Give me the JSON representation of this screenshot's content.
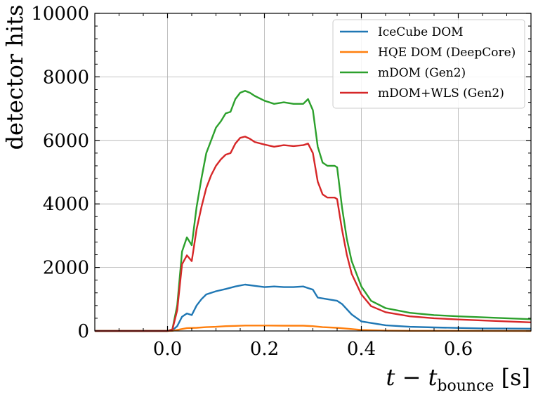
{
  "chart_data": {
    "type": "line",
    "xlabel": "t − t",
    "xlabel_sub": "bounce",
    "xlabel_unit": " [s]",
    "ylabel": "detector hits",
    "xlim": [
      -0.15,
      0.75
    ],
    "ylim": [
      0,
      10000
    ],
    "xticks": [
      0.0,
      0.2,
      0.4,
      0.6
    ],
    "xtick_labels": [
      "0.0",
      "0.2",
      "0.4",
      "0.6"
    ],
    "yticks": [
      0,
      2000,
      4000,
      6000,
      8000,
      10000
    ],
    "ytick_labels": [
      "0",
      "2000",
      "4000",
      "6000",
      "8000",
      "10000"
    ],
    "grid": true,
    "legend_position": "top-right",
    "series": [
      {
        "name": "IceCube DOM",
        "color": "#1f77b4",
        "x": [
          -0.15,
          0.0,
          0.01,
          0.02,
          0.03,
          0.04,
          0.05,
          0.06,
          0.07,
          0.08,
          0.1,
          0.12,
          0.14,
          0.16,
          0.18,
          0.2,
          0.22,
          0.24,
          0.26,
          0.28,
          0.29,
          0.3,
          0.31,
          0.33,
          0.35,
          0.36,
          0.38,
          0.4,
          0.45,
          0.5,
          0.55,
          0.6,
          0.65,
          0.7,
          0.75
        ],
        "y": [
          0,
          0,
          20,
          150,
          450,
          550,
          500,
          800,
          1000,
          1150,
          1250,
          1320,
          1400,
          1460,
          1420,
          1380,
          1400,
          1380,
          1380,
          1400,
          1350,
          1300,
          1050,
          1000,
          950,
          850,
          520,
          300,
          180,
          130,
          110,
          95,
          80,
          75,
          70
        ]
      },
      {
        "name": "HQE DOM (DeepCore)",
        "color": "#ff7f0e",
        "x": [
          -0.15,
          0.0,
          0.01,
          0.02,
          0.04,
          0.06,
          0.08,
          0.1,
          0.12,
          0.14,
          0.16,
          0.2,
          0.24,
          0.28,
          0.3,
          0.32,
          0.35,
          0.38,
          0.4,
          0.45,
          0.5,
          0.75
        ],
        "y": [
          0,
          0,
          5,
          30,
          90,
          100,
          120,
          130,
          150,
          160,
          170,
          170,
          165,
          165,
          150,
          120,
          100,
          60,
          30,
          10,
          5,
          0
        ]
      },
      {
        "name": "mDOM (Gen2)",
        "color": "#2ca02c",
        "x": [
          -0.15,
          0.0,
          0.01,
          0.02,
          0.03,
          0.04,
          0.05,
          0.06,
          0.07,
          0.08,
          0.09,
          0.1,
          0.11,
          0.12,
          0.13,
          0.14,
          0.15,
          0.16,
          0.17,
          0.18,
          0.2,
          0.22,
          0.24,
          0.26,
          0.28,
          0.29,
          0.3,
          0.31,
          0.32,
          0.33,
          0.345,
          0.35,
          0.36,
          0.37,
          0.38,
          0.4,
          0.42,
          0.45,
          0.5,
          0.55,
          0.6,
          0.65,
          0.7,
          0.75
        ],
        "y": [
          0,
          0,
          50,
          800,
          2500,
          2950,
          2700,
          3900,
          4800,
          5600,
          6000,
          6400,
          6600,
          6850,
          6900,
          7300,
          7500,
          7560,
          7500,
          7400,
          7250,
          7150,
          7200,
          7150,
          7150,
          7300,
          6950,
          5800,
          5300,
          5200,
          5200,
          5150,
          3900,
          2900,
          2200,
          1400,
          950,
          720,
          570,
          500,
          460,
          430,
          400,
          370
        ]
      },
      {
        "name": "mDOM+WLS (Gen2)",
        "color": "#d62728",
        "x": [
          -0.15,
          0.0,
          0.01,
          0.02,
          0.03,
          0.04,
          0.05,
          0.06,
          0.07,
          0.08,
          0.09,
          0.1,
          0.11,
          0.12,
          0.13,
          0.14,
          0.15,
          0.16,
          0.17,
          0.18,
          0.2,
          0.22,
          0.24,
          0.26,
          0.28,
          0.29,
          0.3,
          0.31,
          0.32,
          0.33,
          0.345,
          0.35,
          0.36,
          0.37,
          0.38,
          0.4,
          0.42,
          0.45,
          0.5,
          0.55,
          0.6,
          0.65,
          0.7,
          0.75
        ],
        "y": [
          0,
          0,
          40,
          650,
          2100,
          2380,
          2200,
          3200,
          3900,
          4500,
          4900,
          5200,
          5400,
          5550,
          5600,
          5900,
          6080,
          6120,
          6050,
          5950,
          5870,
          5800,
          5850,
          5820,
          5850,
          5900,
          5600,
          4700,
          4300,
          4200,
          4200,
          4150,
          3200,
          2400,
          1800,
          1150,
          780,
          590,
          460,
          400,
          360,
          330,
          300,
          270
        ]
      }
    ]
  }
}
